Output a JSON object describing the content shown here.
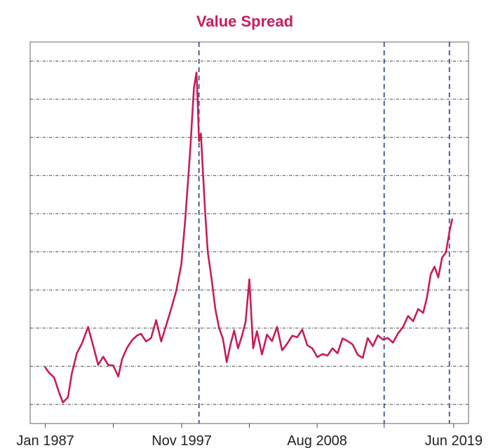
{
  "chart_data": {
    "type": "line",
    "title": "Value Spread",
    "xlabel": "",
    "ylabel": "",
    "x_ticks": [
      "Jan 1987",
      "Nov 1997",
      "Aug 2008",
      "Jun 2019"
    ],
    "x_tick_years": [
      1987.0,
      1997.83,
      2008.58,
      2019.42
    ],
    "minor_tick_years": [
      1992.4,
      2003.2,
      2013.9
    ],
    "xlim": [
      1985.8,
      2020.6
    ],
    "ylim": [
      0,
      100
    ],
    "y_gridlines": [
      5,
      15,
      25,
      35,
      45,
      55,
      65,
      75,
      85,
      95
    ],
    "y_tick_labels_shown": false,
    "vertical_markers": [
      1999.2,
      2013.9,
      2019.08
    ],
    "series": [
      {
        "name": "",
        "x": [
          1987.0,
          1987.3,
          1987.7,
          1988.1,
          1988.4,
          1988.8,
          1989.1,
          1989.5,
          1989.9,
          1990.4,
          1990.8,
          1991.2,
          1991.6,
          1992.0,
          1992.4,
          1992.8,
          1993.1,
          1993.5,
          1993.9,
          1994.3,
          1994.6,
          1995.0,
          1995.4,
          1995.8,
          1996.2,
          1996.6,
          1997.0,
          1997.4,
          1997.8,
          1998.1,
          1998.5,
          1998.8,
          1999.0,
          1999.1,
          1999.2,
          1999.35,
          1999.5,
          1999.7,
          1999.9,
          2000.2,
          2000.5,
          2000.8,
          2001.1,
          2001.4,
          2001.7,
          2002.0,
          2002.3,
          2002.6,
          2002.9,
          2003.2,
          2003.5,
          2003.8,
          2004.2,
          2004.6,
          2005.0,
          2005.4,
          2005.8,
          2006.2,
          2006.6,
          2007.0,
          2007.4,
          2007.8,
          2008.2,
          2008.6,
          2009.0,
          2009.4,
          2009.8,
          2010.2,
          2010.6,
          2011.0,
          2011.4,
          2011.8,
          2012.2,
          2012.6,
          2013.0,
          2013.4,
          2013.8,
          2014.2,
          2014.6,
          2015.0,
          2015.4,
          2015.8,
          2016.2,
          2016.6,
          2017.0,
          2017.3,
          2017.6,
          2017.9,
          2018.2,
          2018.5,
          2018.8,
          2019.1,
          2019.3
        ],
        "y": [
          14.7,
          13.3,
          12.1,
          8.1,
          5.5,
          6.9,
          13.0,
          18.4,
          20.9,
          25.3,
          20.4,
          15.4,
          17.5,
          15.3,
          15.2,
          12.3,
          16.9,
          19.9,
          21.9,
          23.1,
          23.5,
          21.5,
          22.4,
          27.1,
          21.5,
          25.8,
          30.1,
          34.8,
          41.7,
          53.0,
          71.4,
          88.0,
          92.0,
          84.0,
          74.0,
          76.0,
          67.0,
          55.0,
          45.0,
          38.0,
          30.0,
          25.0,
          22.3,
          16.1,
          20.7,
          24.4,
          19.7,
          22.8,
          26.6,
          37.8,
          19.7,
          24.2,
          18.1,
          23.3,
          21.6,
          25.3,
          19.2,
          20.9,
          23.0,
          22.6,
          24.6,
          20.5,
          19.7,
          17.4,
          18.2,
          17.8,
          19.7,
          18.4,
          22.3,
          21.6,
          20.7,
          18.0,
          17.2,
          22.4,
          20.3,
          23.1,
          22.0,
          22.4,
          21.2,
          23.6,
          25.3,
          28.2,
          26.8,
          30.0,
          29.0,
          33.0,
          39.2,
          41.1,
          38.3,
          43.5,
          44.8,
          50.6,
          53.5
        ]
      }
    ],
    "colors": {
      "line": "#c61d5c",
      "title": "#c61d5c",
      "marker": "#3b4f8f",
      "grid": "#444444",
      "frame": "#666666"
    },
    "grid": "horizontal dot-dash",
    "legend": "none"
  }
}
